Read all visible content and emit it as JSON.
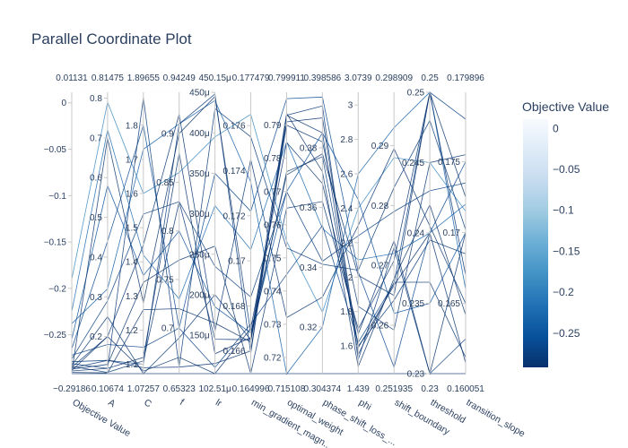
{
  "title": "Parallel Coordinate Plot",
  "chart_data": {
    "type": "parallel_coordinates",
    "title": "Parallel Coordinate Plot",
    "colorbar": {
      "title": "Objective Value",
      "range": [
        -0.29186,
        0.01131
      ],
      "ticks": [
        "0",
        "−0.05",
        "−0.1",
        "−0.15",
        "−0.2",
        "−0.25"
      ],
      "tick_values": [
        0,
        -0.05,
        -0.1,
        -0.15,
        -0.2,
        -0.25
      ],
      "colorscale": [
        "#08306b",
        "#08519c",
        "#2171b5",
        "#4292c6",
        "#6baed6",
        "#9ecae1",
        "#c6dbef",
        "#deebf7",
        "#f7fbff"
      ]
    },
    "dimensions": [
      {
        "label": "Objective Value",
        "range_label": [
          "−0.29186",
          "0.01131"
        ],
        "range": [
          -0.29186,
          0.01131
        ],
        "ticks": [
          "0",
          "−0.05",
          "−0.1",
          "−0.15",
          "−0.2",
          "−0.25"
        ],
        "tick_values": [
          0,
          -0.05,
          -0.1,
          -0.15,
          -0.2,
          -0.25
        ]
      },
      {
        "label": "A",
        "range_label": [
          "0.10674",
          "0.81475"
        ],
        "range": [
          0.10674,
          0.81475
        ],
        "ticks": [
          "0.8",
          "0.7",
          "0.6",
          "0.5",
          "0.4",
          "0.3",
          "0.2"
        ],
        "tick_values": [
          0.8,
          0.7,
          0.6,
          0.5,
          0.4,
          0.3,
          0.2
        ]
      },
      {
        "label": "C",
        "range_label": [
          "1.07257",
          "1.89655"
        ],
        "range": [
          1.07257,
          1.89655
        ],
        "ticks": [
          "1.8",
          "1.7",
          "1.6",
          "1.5",
          "1.4",
          "1.3",
          "1.2",
          "1.1"
        ],
        "tick_values": [
          1.8,
          1.7,
          1.6,
          1.5,
          1.4,
          1.3,
          1.2,
          1.1
        ]
      },
      {
        "label": "f",
        "range_label": [
          "0.65323",
          "0.94249"
        ],
        "range": [
          0.65323,
          0.94249
        ],
        "ticks": [
          "0.9",
          "0.85",
          "0.8",
          "0.75",
          "0.7"
        ],
        "tick_values": [
          0.9,
          0.85,
          0.8,
          0.75,
          0.7
        ]
      },
      {
        "label": "lr",
        "range_label": [
          "102.51μ",
          "450.15μ"
        ],
        "range": [
          102.51,
          450.15
        ],
        "ticks": [
          "450μ",
          "400μ",
          "350μ",
          "300μ",
          "250μ",
          "200μ",
          "150μ"
        ],
        "tick_values": [
          450,
          400,
          350,
          300,
          250,
          200,
          150
        ]
      },
      {
        "label": "min_gradient_magn...",
        "range_label": [
          "0.164996",
          "0.177479"
        ],
        "range": [
          0.164996,
          0.177479
        ],
        "ticks": [
          "0.176",
          "0.174",
          "0.172",
          "0.17",
          "0.168",
          "0.166"
        ],
        "tick_values": [
          0.176,
          0.174,
          0.172,
          0.17,
          0.168,
          0.166
        ]
      },
      {
        "label": "optimal_weight",
        "range_label": [
          "0.715108",
          "0.799911"
        ],
        "range": [
          0.715108,
          0.799911
        ],
        "ticks": [
          "0.79",
          "0.78",
          "0.77",
          "0.76",
          "0.75",
          "0.74",
          "0.73",
          "0.72"
        ],
        "tick_values": [
          0.79,
          0.78,
          0.77,
          0.76,
          0.75,
          0.74,
          0.73,
          0.72
        ]
      },
      {
        "label": "phase_shift_loss_...",
        "range_label": [
          "0.304374",
          "0.398586"
        ],
        "range": [
          0.304374,
          0.398586
        ],
        "ticks": [
          "0.38",
          "0.36",
          "0.34",
          "0.32"
        ],
        "tick_values": [
          0.38,
          0.36,
          0.34,
          0.32
        ]
      },
      {
        "label": "phi",
        "range_label": [
          "1.439",
          "3.0739"
        ],
        "range": [
          1.439,
          3.0739
        ],
        "ticks": [
          "3",
          "2.8",
          "2.6",
          "2.4",
          "2.2",
          "2",
          "1.8",
          "1.6"
        ],
        "tick_values": [
          3,
          2.8,
          2.6,
          2.4,
          2.2,
          2,
          1.8,
          1.6
        ]
      },
      {
        "label": "shift_boundary",
        "range_label": [
          "0.251935",
          "0.298909"
        ],
        "range": [
          0.251935,
          0.298909
        ],
        "ticks": [
          "0.29",
          "0.28",
          "0.27",
          "0.26"
        ],
        "tick_values": [
          0.29,
          0.28,
          0.27,
          0.26
        ]
      },
      {
        "label": "threshold",
        "range_label": [
          "0.23",
          "0.25"
        ],
        "range": [
          0.23,
          0.25
        ],
        "ticks": [
          "0.25",
          "0.245",
          "0.24",
          "0.235",
          "0.23"
        ],
        "tick_values": [
          0.25,
          0.245,
          0.24,
          0.235,
          0.23
        ]
      },
      {
        "label": "transition_slope",
        "range_label": [
          "0.160051",
          "0.179896"
        ],
        "range": [
          0.160051,
          0.179896
        ],
        "ticks": [
          "0.175",
          "0.17",
          "0.165"
        ],
        "tick_values": [
          0.175,
          0.17,
          0.165
        ]
      }
    ],
    "lines": [
      [
        0.01131,
        0.81475,
        1.89655,
        0.94249,
        450.15,
        0.177479,
        0.799911,
        0.398586,
        3.0739,
        0.298909,
        0.25,
        0.179896
      ],
      [
        -0.19,
        0.79,
        1.6,
        0.86,
        395,
        0.1765,
        0.755,
        0.325,
        2.4,
        0.288,
        0.245,
        0.1715
      ],
      [
        -0.225,
        0.72,
        1.42,
        0.73,
        310,
        0.1705,
        0.785,
        0.353,
        2.1,
        0.272,
        0.24,
        0.172
      ],
      [
        -0.238,
        0.32,
        1.73,
        0.91,
        440,
        0.1735,
        0.715,
        0.32,
        2.6,
        0.293,
        0.25,
        0.166
      ],
      [
        -0.255,
        0.58,
        1.36,
        0.8,
        185,
        0.1668,
        0.77,
        0.385,
        2.45,
        0.262,
        0.235,
        0.17
      ],
      [
        -0.265,
        0.44,
        1.8,
        0.7,
        350,
        0.1722,
        0.798,
        0.397,
        2.03,
        0.253,
        0.24,
        0.175
      ],
      [
        -0.272,
        0.18,
        1.15,
        0.7,
        110,
        0.1672,
        0.745,
        0.354,
        1.62,
        0.267,
        0.25,
        0.178
      ],
      [
        -0.276,
        0.29,
        1.54,
        0.83,
        235,
        0.1684,
        0.77,
        0.342,
        2.24,
        0.279,
        0.243,
        0.1735
      ],
      [
        -0.279,
        0.14,
        1.1,
        0.91,
        448,
        0.1659,
        0.793,
        0.394,
        1.52,
        0.273,
        0.23,
        0.1625
      ],
      [
        -0.281,
        0.12,
        1.88,
        0.66,
        430,
        0.1755,
        0.753,
        0.341,
        2.04,
        0.283,
        0.248,
        0.1702
      ],
      [
        -0.283,
        0.25,
        1.07257,
        0.69,
        200,
        0.1665,
        0.776,
        0.377,
        1.6,
        0.2642,
        0.2395,
        0.1685
      ],
      [
        -0.284,
        0.11,
        1.11,
        0.83,
        145,
        0.1665,
        0.79,
        0.382,
        1.83,
        0.2592,
        0.245,
        0.1755
      ],
      [
        -0.285,
        0.2,
        1.45,
        0.92,
        155,
        0.1745,
        0.732,
        0.33,
        2.3,
        0.2895,
        0.2405,
        0.165
      ],
      [
        -0.286,
        0.14,
        1.09,
        0.66,
        115,
        0.166,
        0.793,
        0.385,
        1.55,
        0.2672,
        0.2365,
        0.1612
      ],
      [
        -0.287,
        0.13,
        1.34,
        0.77,
        260,
        0.165,
        0.765,
        0.362,
        1.7,
        0.2708,
        0.25,
        0.167
      ],
      [
        -0.2885,
        0.2,
        1.08,
        0.67,
        102.51,
        0.167,
        0.7848,
        0.368,
        1.67,
        0.2741,
        0.23,
        0.17
      ],
      [
        -0.289,
        0.12,
        1.12,
        0.88,
        127,
        0.1666,
        0.7935,
        0.372,
        1.48,
        0.2678,
        0.242,
        0.1642
      ],
      [
        -0.2905,
        0.1086,
        1.26,
        0.72,
        165,
        0.1664,
        0.791,
        0.39,
        1.59,
        0.2667,
        0.24,
        0.1608
      ],
      [
        -0.29186,
        0.10674,
        1.07257,
        0.65323,
        102.51,
        0.164996,
        0.715108,
        0.304374,
        1.439,
        0.251935,
        0.23,
        0.160051
      ],
      [
        -0.29,
        0.7,
        1.28,
        0.9,
        445,
        0.1668,
        0.775,
        0.378,
        2.01,
        0.265,
        0.25,
        0.1725
      ]
    ]
  }
}
